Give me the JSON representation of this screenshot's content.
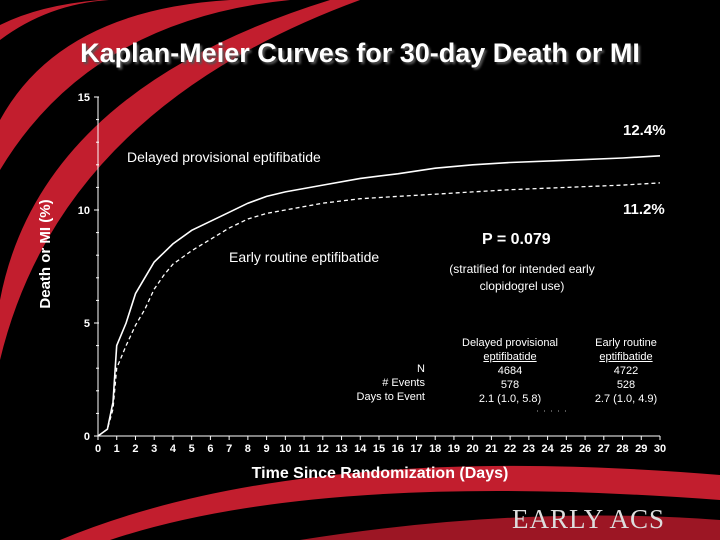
{
  "slide": {
    "title": "Kaplan-Meier Curves for 30-day Death or MI",
    "logo": "EARLY ACS"
  },
  "colors": {
    "background": "#000000",
    "swoosh": "#c21e2e",
    "text": "#ffffff"
  },
  "chart_data": {
    "type": "line",
    "title": "Kaplan-Meier Curves for 30-day Death or MI",
    "xlabel": "Time Since Randomization (Days)",
    "ylabel": "Death or MI (%)",
    "xlim": [
      0,
      30
    ],
    "ylim": [
      0,
      15
    ],
    "xticks": [
      0,
      1,
      2,
      3,
      4,
      5,
      6,
      7,
      8,
      9,
      10,
      11,
      12,
      13,
      14,
      15,
      16,
      17,
      18,
      19,
      20,
      21,
      22,
      23,
      24,
      25,
      26,
      27,
      28,
      29,
      30
    ],
    "yticks": [
      0,
      5,
      10,
      15
    ],
    "series": [
      {
        "name": "Delayed provisional eptifibatide",
        "style": "solid",
        "end_label": "12.4%",
        "points": [
          [
            0,
            0
          ],
          [
            0.5,
            0.3
          ],
          [
            0.8,
            1.5
          ],
          [
            1,
            4.0
          ],
          [
            1.5,
            5.0
          ],
          [
            2,
            6.3
          ],
          [
            2.5,
            7.0
          ],
          [
            3,
            7.7
          ],
          [
            3.5,
            8.1
          ],
          [
            4,
            8.5
          ],
          [
            5,
            9.1
          ],
          [
            6,
            9.5
          ],
          [
            7,
            9.9
          ],
          [
            8,
            10.3
          ],
          [
            9,
            10.6
          ],
          [
            10,
            10.8
          ],
          [
            12,
            11.1
          ],
          [
            14,
            11.4
          ],
          [
            16,
            11.6
          ],
          [
            18,
            11.85
          ],
          [
            20,
            12.0
          ],
          [
            22,
            12.1
          ],
          [
            25,
            12.2
          ],
          [
            28,
            12.3
          ],
          [
            30,
            12.4
          ]
        ]
      },
      {
        "name": "Early routine eptifibatide",
        "style": "dashed",
        "end_label": "11.2%",
        "points": [
          [
            0,
            0
          ],
          [
            0.5,
            0.3
          ],
          [
            0.8,
            1.2
          ],
          [
            1,
            3.0
          ],
          [
            1.5,
            4.0
          ],
          [
            2,
            4.9
          ],
          [
            2.5,
            5.6
          ],
          [
            3,
            6.5
          ],
          [
            3.5,
            7.1
          ],
          [
            4,
            7.6
          ],
          [
            5,
            8.2
          ],
          [
            6,
            8.7
          ],
          [
            7,
            9.2
          ],
          [
            8,
            9.6
          ],
          [
            9,
            9.85
          ],
          [
            10,
            10.0
          ],
          [
            12,
            10.3
          ],
          [
            14,
            10.5
          ],
          [
            16,
            10.6
          ],
          [
            18,
            10.7
          ],
          [
            20,
            10.8
          ],
          [
            22,
            10.9
          ],
          [
            25,
            11.0
          ],
          [
            28,
            11.1
          ],
          [
            30,
            11.2
          ]
        ]
      }
    ],
    "annotations": {
      "delayed_label": "Delayed provisional eptifibatide",
      "early_label": "Early routine eptifibatide",
      "p_value": "P = 0.079",
      "note_line1": "(stratified for intended early",
      "note_line2": "clopidogrel use)"
    },
    "table": {
      "row_labels": [
        "N",
        "# Events",
        "Days to Event"
      ],
      "columns": [
        {
          "header_line1": "Delayed provisional",
          "header_line2": "eptifibatide",
          "values": [
            "4684",
            "578",
            "2.1 (1.0, 5.8)"
          ]
        },
        {
          "header_line1": "Early routine",
          "header_line2": "eptifibatide",
          "values": [
            "4722",
            "528",
            "2.7 (1.0, 4.9)"
          ]
        }
      ]
    }
  }
}
